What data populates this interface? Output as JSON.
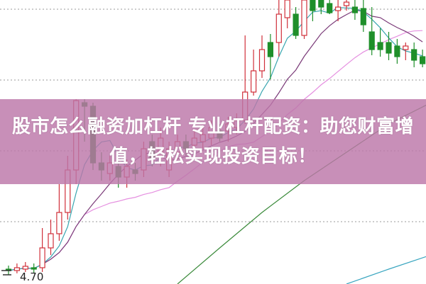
{
  "banner": {
    "line1": "股市怎么融资加杠杆 专业杠杆配资：助您财富增",
    "line2": "值，轻松实现投资目标！"
  },
  "chart_data": {
    "type": "candlestick",
    "title": "",
    "xlabel": "",
    "ylabel": "",
    "ylim": [
      4.59,
      8.6
    ],
    "grid": "horizontal-dotted",
    "y_tick_labels": [
      "4.70"
    ],
    "colors": {
      "up": "#d0303a",
      "down": "#1f8f2a",
      "ma5": "#3aa6b0",
      "ma10": "#7a3a78",
      "ma20": "#e58fe0",
      "ma_long": "#3a8a3a",
      "ma_longer": "#3aa6c0"
    },
    "candles_ohlc": [
      [
        4.8,
        4.78,
        4.85,
        4.72
      ],
      [
        4.78,
        4.82,
        4.88,
        4.74
      ],
      [
        4.8,
        4.84,
        4.9,
        4.76
      ],
      [
        4.82,
        4.8,
        4.88,
        4.74
      ],
      [
        4.82,
        5.1,
        5.38,
        4.76
      ],
      [
        5.1,
        5.3,
        5.5,
        5.0
      ],
      [
        5.3,
        5.6,
        6.0,
        5.2
      ],
      [
        5.6,
        6.2,
        6.4,
        5.5
      ],
      [
        6.2,
        7.18,
        7.2,
        6.0
      ],
      [
        7.15,
        7.1,
        7.2,
        6.6
      ],
      [
        7.1,
        6.3,
        7.15,
        6.2
      ],
      [
        6.3,
        6.2,
        6.45,
        6.05
      ],
      [
        6.15,
        6.3,
        6.4,
        6.05
      ],
      [
        6.25,
        6.1,
        6.35,
        5.95
      ],
      [
        6.1,
        6.25,
        6.35,
        5.95
      ],
      [
        6.2,
        6.15,
        6.3,
        6.05
      ],
      [
        6.2,
        6.5,
        6.6,
        6.1
      ],
      [
        6.6,
        6.35,
        6.7,
        6.25
      ],
      [
        6.4,
        6.65,
        6.8,
        6.25
      ],
      [
        6.2,
        6.5,
        6.6,
        6.1
      ],
      [
        6.45,
        6.6,
        6.7,
        6.35
      ],
      [
        6.6,
        6.5,
        6.7,
        6.4
      ],
      [
        6.55,
        6.65,
        6.75,
        6.45
      ],
      [
        6.6,
        6.7,
        6.8,
        6.5
      ],
      [
        6.65,
        6.8,
        6.9,
        6.55
      ],
      [
        6.75,
        6.65,
        6.85,
        6.6
      ],
      [
        6.75,
        6.85,
        6.95,
        6.6
      ],
      [
        6.8,
        6.9,
        7.0,
        6.7
      ],
      [
        6.9,
        7.3,
        8.1,
        6.85
      ],
      [
        7.3,
        7.6,
        7.9,
        7.25
      ],
      [
        7.6,
        7.9,
        8.1,
        7.5
      ],
      [
        8.0,
        7.8,
        8.12,
        7.48
      ],
      [
        8.0,
        8.4,
        8.6,
        7.8
      ],
      [
        8.35,
        8.6,
        8.6,
        8.2
      ],
      [
        8.4,
        8.1,
        8.5,
        8.05
      ],
      [
        8.1,
        8.6,
        8.6,
        8.05
      ],
      [
        8.6,
        8.45,
        8.6,
        8.3
      ],
      [
        8.6,
        8.5,
        8.6,
        8.4
      ],
      [
        8.55,
        8.42,
        8.6,
        8.4
      ],
      [
        8.45,
        8.5,
        8.6,
        8.3
      ],
      [
        8.52,
        8.57,
        8.6,
        8.45
      ],
      [
        8.5,
        8.42,
        8.6,
        8.32
      ],
      [
        8.48,
        8.25,
        8.6,
        8.15
      ],
      [
        8.15,
        7.9,
        8.5,
        7.82
      ],
      [
        8.0,
        7.9,
        8.2,
        7.8
      ],
      [
        8.0,
        7.85,
        8.15,
        7.75
      ],
      [
        7.95,
        7.8,
        8.05,
        7.7
      ],
      [
        7.9,
        7.95,
        8.0,
        7.75
      ],
      [
        7.9,
        7.75,
        8.0,
        7.65
      ],
      [
        7.8,
        7.7,
        7.9,
        7.65
      ]
    ],
    "ma_long": [
      [
        20,
        4.59
      ],
      [
        25,
        5.1
      ],
      [
        30,
        5.6
      ],
      [
        35,
        6.05
      ],
      [
        40,
        6.45
      ],
      [
        45,
        6.85
      ],
      [
        50,
        7.15
      ]
    ],
    "ma_longer": [
      [
        40,
        4.59
      ],
      [
        45,
        4.8
      ],
      [
        50,
        5.0
      ]
    ]
  }
}
